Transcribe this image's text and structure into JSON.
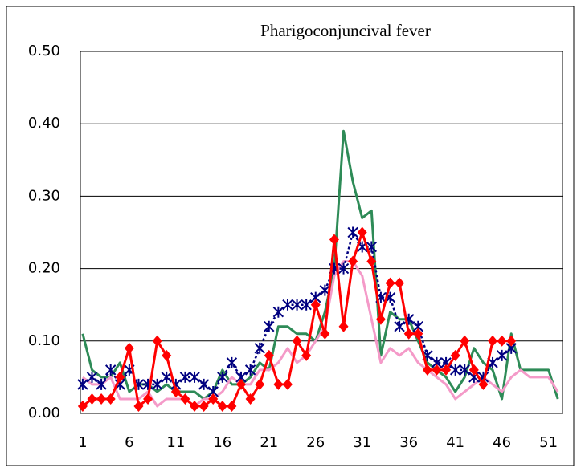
{
  "chart_data": {
    "type": "line",
    "title": "Pharigoconjuncival fever",
    "x": [
      1,
      2,
      3,
      4,
      5,
      6,
      7,
      8,
      9,
      10,
      11,
      12,
      13,
      14,
      15,
      16,
      17,
      18,
      19,
      20,
      21,
      22,
      23,
      24,
      25,
      26,
      27,
      28,
      29,
      30,
      31,
      32,
      33,
      34,
      35,
      36,
      37,
      38,
      39,
      40,
      41,
      42,
      43,
      44,
      45,
      46,
      47,
      48,
      49,
      50,
      51,
      52
    ],
    "series": [
      {
        "color": "#2e8b57",
        "marker": "none",
        "values": [
          0.11,
          0.06,
          0.05,
          0.05,
          0.07,
          0.03,
          0.04,
          0.04,
          0.03,
          0.04,
          0.03,
          0.03,
          0.03,
          0.02,
          0.03,
          0.06,
          0.04,
          0.04,
          0.05,
          0.07,
          0.06,
          0.12,
          0.12,
          0.11,
          0.11,
          0.1,
          0.14,
          0.2,
          0.39,
          0.32,
          0.27,
          0.28,
          0.08,
          0.14,
          0.13,
          0.13,
          0.1,
          0.07,
          0.06,
          0.05,
          0.03,
          0.05,
          0.09,
          0.07,
          0.06,
          0.02,
          0.11,
          0.06,
          0.06,
          0.06,
          0.06,
          0.02
        ]
      },
      {
        "color": "#f49ac8",
        "marker": "none",
        "values": [
          0.05,
          0.04,
          0.04,
          0.05,
          0.02,
          0.02,
          0.02,
          0.03,
          0.01,
          0.02,
          0.02,
          0.02,
          0.01,
          0.02,
          0.02,
          0.03,
          0.05,
          0.04,
          0.04,
          0.06,
          0.06,
          0.07,
          0.09,
          0.07,
          0.08,
          0.1,
          0.12,
          0.19,
          0.21,
          0.21,
          0.19,
          0.13,
          0.07,
          0.09,
          0.08,
          0.09,
          0.07,
          0.06,
          0.05,
          0.04,
          0.02,
          0.03,
          0.04,
          0.05,
          0.04,
          0.03,
          0.05,
          0.06,
          0.05,
          0.05,
          0.05,
          0.03
        ]
      },
      {
        "color": "#000080",
        "marker": "asterisk",
        "dashed": true,
        "values": [
          0.04,
          0.05,
          0.04,
          0.06,
          0.04,
          0.06,
          0.04,
          0.04,
          0.04,
          0.05,
          0.04,
          0.05,
          0.05,
          0.04,
          0.03,
          0.05,
          0.07,
          0.05,
          0.06,
          0.09,
          0.12,
          0.14,
          0.15,
          0.15,
          0.15,
          0.16,
          0.17,
          0.2,
          0.2,
          0.25,
          0.23,
          0.23,
          0.16,
          0.16,
          0.12,
          0.13,
          0.12,
          0.08,
          0.07,
          0.07,
          0.06,
          0.06,
          0.05,
          0.05,
          0.07,
          0.08,
          0.09,
          null,
          null,
          null,
          null,
          null
        ]
      },
      {
        "color": "#ff0000",
        "marker": "diamond",
        "values": [
          0.01,
          0.02,
          0.02,
          0.02,
          0.05,
          0.09,
          0.01,
          0.02,
          0.1,
          0.08,
          0.03,
          0.02,
          0.01,
          0.01,
          0.02,
          0.01,
          0.01,
          0.04,
          0.02,
          0.04,
          0.08,
          0.04,
          0.04,
          0.1,
          0.08,
          0.15,
          0.11,
          0.24,
          0.12,
          0.21,
          0.25,
          0.21,
          0.13,
          0.18,
          0.18,
          0.11,
          0.11,
          0.06,
          0.06,
          0.06,
          0.08,
          0.1,
          0.06,
          0.04,
          0.1,
          0.1,
          0.1,
          null,
          null,
          null,
          null,
          null
        ]
      }
    ],
    "xlim": [
      0.75,
      52.5
    ],
    "xticks": [
      1,
      6,
      11,
      16,
      21,
      26,
      31,
      36,
      41,
      46,
      51
    ],
    "ylim": [
      0,
      0.5
    ],
    "yticks": [
      {
        "value": 0,
        "label": "0.00"
      },
      {
        "value": 0.1,
        "label": "0.10"
      },
      {
        "value": 0.2,
        "label": "0.20"
      },
      {
        "value": 0.3,
        "label": "0.30"
      },
      {
        "value": 0.4,
        "label": "0.40"
      },
      {
        "value": 0.5,
        "label": "0.50"
      }
    ],
    "grid": true
  }
}
